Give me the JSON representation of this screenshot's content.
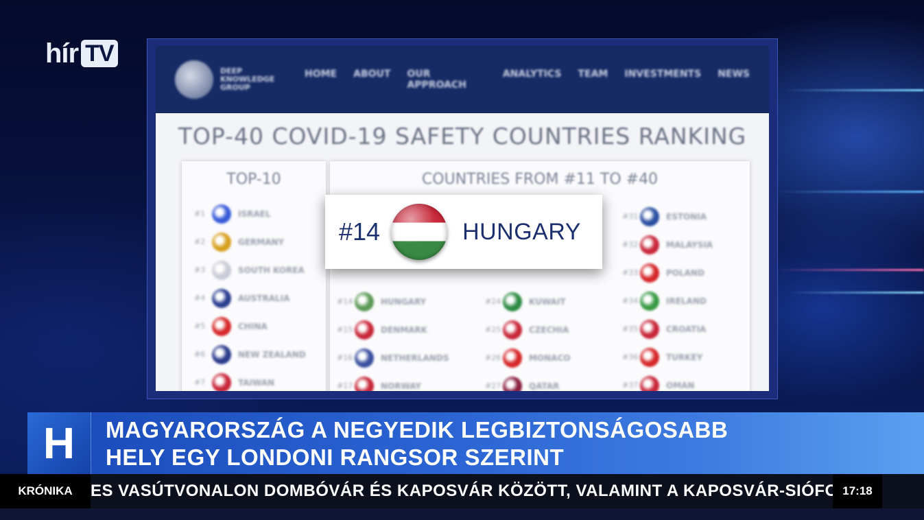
{
  "channel_logo": {
    "text": "hír",
    "tv": "TV"
  },
  "website": {
    "brand": "DEEP KNOWLEDGE GROUP",
    "nav": [
      "HOME",
      "ABOUT",
      "OUR APPROACH",
      "ANALYTICS",
      "TEAM",
      "INVESTMENTS",
      "NEWS"
    ],
    "title": "TOP-40 COVID-19 SAFETY COUNTRIES RANKING",
    "top10_heading": "TOP-10",
    "rest_heading": "COUNTRIES FROM #11 TO #40",
    "top10": [
      {
        "rank": "#1",
        "name": "ISRAEL",
        "color": "#3a5bd9"
      },
      {
        "rank": "#2",
        "name": "GERMANY",
        "color": "#d8a020"
      },
      {
        "rank": "#3",
        "name": "SOUTH KOREA",
        "color": "#c9cbd6"
      },
      {
        "rank": "#4",
        "name": "AUSTRALIA",
        "color": "#2b3f8f"
      },
      {
        "rank": "#5",
        "name": "CHINA",
        "color": "#d6282a"
      },
      {
        "rank": "#6",
        "name": "NEW ZEALAND",
        "color": "#2a3d8c"
      },
      {
        "rank": "#7",
        "name": "TAIWAN",
        "color": "#c8283a"
      }
    ],
    "col_a": [
      {
        "rank": "#14",
        "name": "HUNGARY",
        "color": "#5d9a58"
      },
      {
        "rank": "#15",
        "name": "DENMARK",
        "color": "#c8283a"
      },
      {
        "rank": "#16",
        "name": "NETHERLANDS",
        "color": "#3b4fa0"
      },
      {
        "rank": "#17",
        "name": "NORWAY",
        "color": "#c8283a"
      }
    ],
    "col_b": [
      {
        "rank": "#24",
        "name": "KUWAIT",
        "color": "#2f8a44"
      },
      {
        "rank": "#25",
        "name": "CZECHIA",
        "color": "#c8283a"
      },
      {
        "rank": "#26",
        "name": "MONACO",
        "color": "#d6282a"
      },
      {
        "rank": "#27",
        "name": "QATAR",
        "color": "#8a2040"
      }
    ],
    "col_c": [
      {
        "rank": "#31",
        "name": "ESTONIA",
        "color": "#2b4fa0"
      },
      {
        "rank": "#32",
        "name": "MALAYSIA",
        "color": "#c8283a"
      },
      {
        "rank": "#33",
        "name": "POLAND",
        "color": "#d6282a"
      },
      {
        "rank": "#34",
        "name": "IRELAND",
        "color": "#3a9a45"
      },
      {
        "rank": "#35",
        "name": "CROATIA",
        "color": "#c8283a"
      },
      {
        "rank": "#36",
        "name": "TURKEY",
        "color": "#d6282a"
      },
      {
        "rank": "#37",
        "name": "OMAN",
        "color": "#c8283a"
      }
    ]
  },
  "highlight": {
    "rank": "#14",
    "country": "HUNGARY"
  },
  "lower_third": {
    "logo_letter": "H",
    "headline_line1": "MAGYARORSZÁG A NEGYEDIK LEGBIZTONSÁGOSABB",
    "headline_line2": "HELY EGY LONDONI RANGSOR SZERINT"
  },
  "ticker": {
    "label": "KRÓNIKA",
    "text": "ES VASÚTVONALON DOMBÓVÁR ÉS KAPOSVÁR KÖZÖTT, VALAMINT A KAPOSVÁR-SIÓFOK",
    "time": "17:18"
  }
}
